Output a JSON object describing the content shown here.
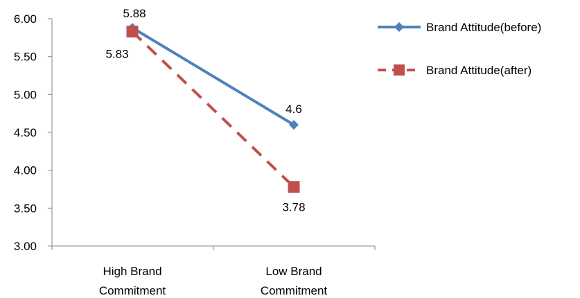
{
  "chart_data": {
    "type": "line",
    "categories": [
      [
        "High Brand",
        "Commitment"
      ],
      [
        "Low Brand",
        "Commitment"
      ]
    ],
    "y_ticks": [
      "6.00",
      "5.50",
      "5.00",
      "4.50",
      "4.00",
      "3.50",
      "3.00"
    ],
    "ylim": [
      3.0,
      6.0
    ],
    "grid": false,
    "legend_position": "right",
    "series": [
      {
        "name": "Brand Attitude(before)",
        "values": [
          5.88,
          4.6
        ],
        "labels": [
          "5.88",
          "4.6"
        ],
        "color": "#4f81bd",
        "marker": "diamond",
        "line_style": "solid"
      },
      {
        "name": "Brand Attitude(after)",
        "values": [
          5.83,
          3.78
        ],
        "labels": [
          "5.83",
          "3.78"
        ],
        "color": "#c0504d",
        "marker": "square",
        "line_style": "dashed"
      }
    ]
  }
}
